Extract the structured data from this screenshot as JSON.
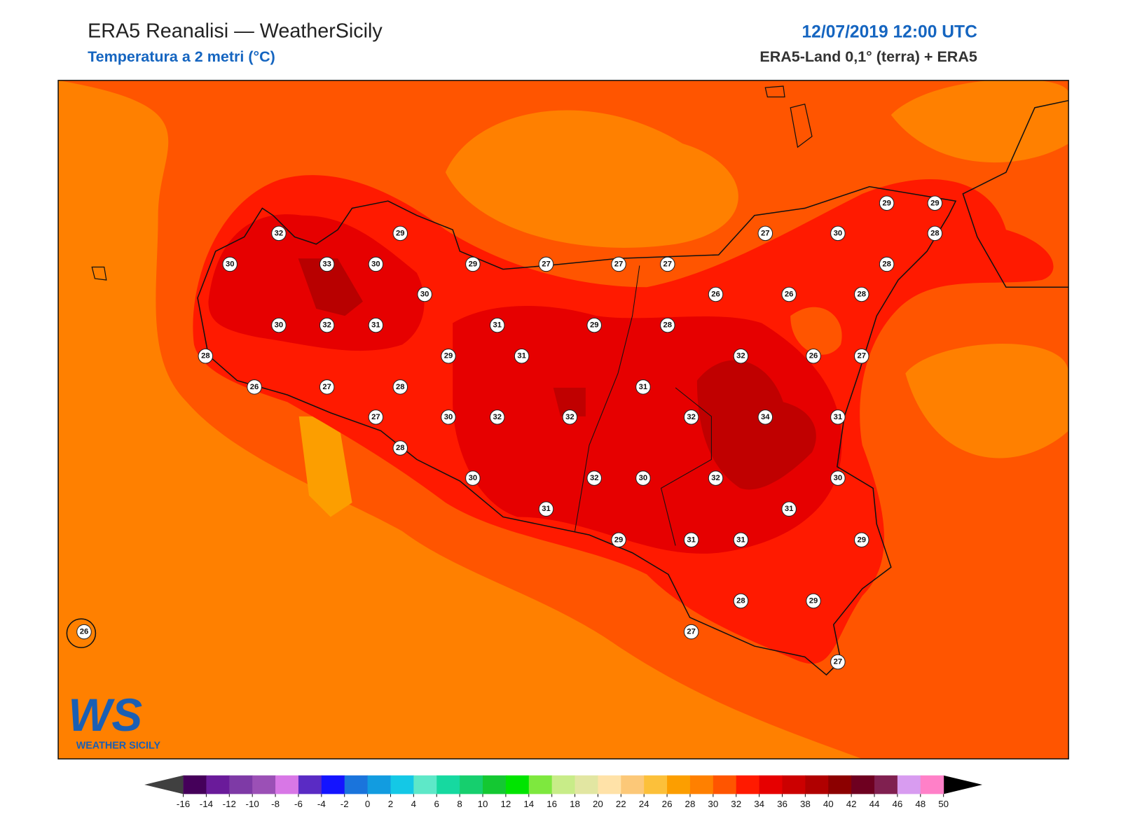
{
  "header": {
    "title": "ERA5 Reanalisi — WeatherSicily",
    "subtitle": "Temperatura a 2 metri (°C)",
    "datetime": "12/07/2019 12:00 UTC",
    "source": "ERA5-Land 0,1° (terra) + ERA5"
  },
  "logo": {
    "mark": "WS",
    "text": "WEATHER SICILY"
  },
  "stations": [
    32,
    29,
    27,
    30,
    28,
    29,
    29,
    30,
    33,
    30,
    29,
    27,
    27,
    27,
    28,
    30,
    26,
    26,
    28,
    30,
    32,
    31,
    31,
    29,
    28,
    28,
    29,
    31,
    32,
    26,
    27,
    26,
    27,
    28,
    31,
    27,
    30,
    32,
    32,
    32,
    34,
    31,
    28,
    30,
    32,
    30,
    32,
    30,
    31,
    31,
    29,
    31,
    31,
    29,
    28,
    29,
    26,
    27,
    27
  ],
  "colorbar": {
    "ticks": [
      -16,
      -14,
      -12,
      -10,
      -8,
      -6,
      -4,
      -2,
      0,
      2,
      4,
      6,
      8,
      10,
      12,
      14,
      16,
      18,
      20,
      22,
      24,
      26,
      28,
      30,
      32,
      34,
      36,
      38,
      40,
      42,
      44,
      46,
      48,
      50
    ],
    "colors": [
      "#45005a",
      "#6a1b9a",
      "#7e3aa6",
      "#9b50b6",
      "#d877e6",
      "#5a2bc4",
      "#1414ff",
      "#1a74dc",
      "#129ce0",
      "#14c8e6",
      "#5ee8c8",
      "#16d9a0",
      "#16cf6e",
      "#14c832",
      "#00e400",
      "#7ee83e",
      "#c8ec88",
      "#e2e6a2",
      "#ffe2a8",
      "#fcc878",
      "#fcc03a",
      "#fc9e00",
      "#ff8000",
      "#ff5500",
      "#ff1a00",
      "#e60000",
      "#cc0000",
      "#b00000",
      "#8c0000",
      "#6e0020",
      "#802050",
      "#d89cf0",
      "#ff80c8",
      "#f0208c",
      "#808080",
      "#404040"
    ],
    "under": "#404040",
    "over": "#000000"
  }
}
